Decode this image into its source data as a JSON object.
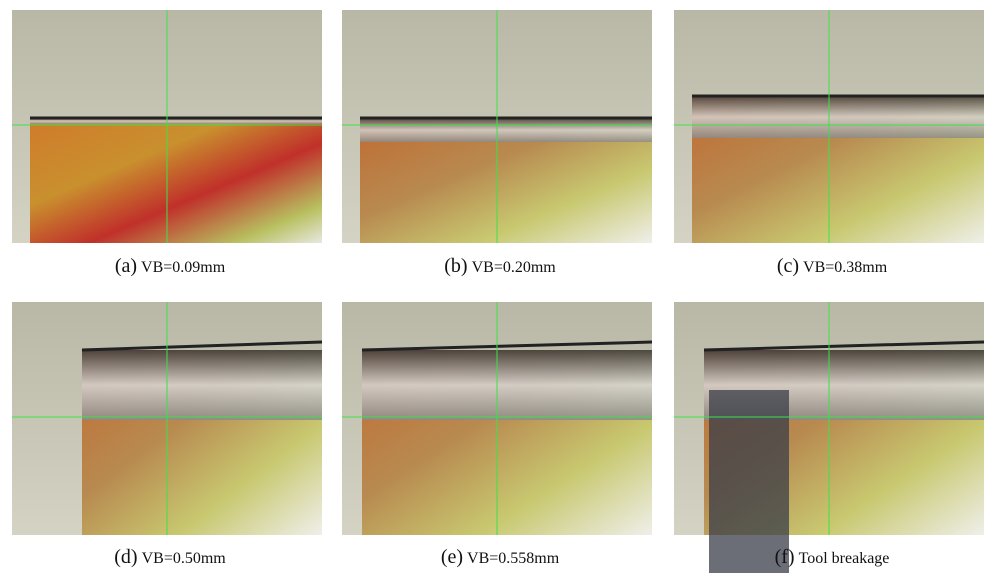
{
  "panels": [
    {
      "label": "(a)",
      "caption": "VB=0.09mm"
    },
    {
      "label": "(b)",
      "caption": "VB=0.20mm"
    },
    {
      "label": "(c)",
      "caption": "VB=0.38mm"
    },
    {
      "label": "(d)",
      "caption": "VB=0.50mm"
    },
    {
      "label": "(e)",
      "caption": "VB=0.558mm"
    },
    {
      "label": "(f)",
      "caption": "Tool breakage"
    }
  ]
}
